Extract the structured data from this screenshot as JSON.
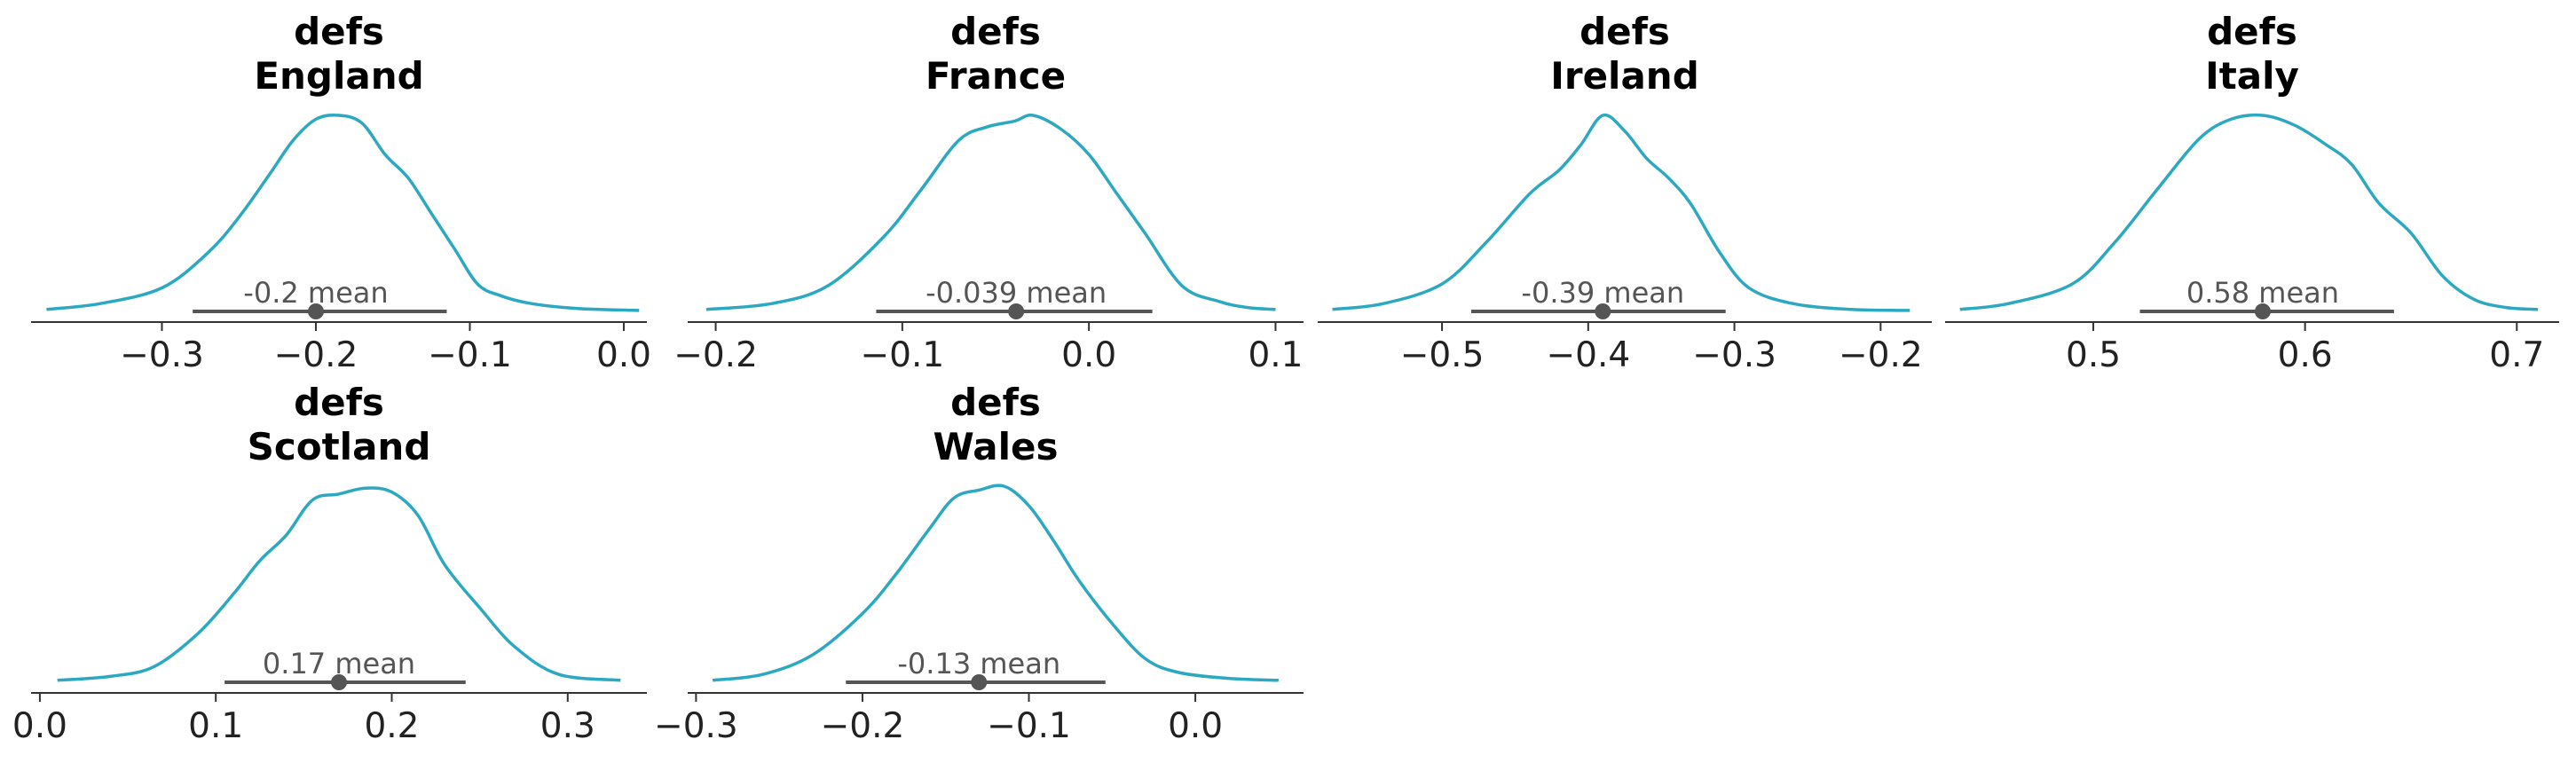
{
  "colors": {
    "density": "#2ca9c1",
    "hdi": "#555555",
    "axis": "#333333",
    "title": "#000000"
  },
  "chart_data": [
    {
      "type": "density",
      "title": [
        "defs",
        "England"
      ],
      "xlim": [
        -0.385,
        0.015
      ],
      "ticks": [
        -0.3,
        -0.2,
        -0.1,
        0.0
      ],
      "tick_labels": [
        "−0.3",
        "−0.2",
        "−0.1",
        "0.0"
      ],
      "mean": -0.2,
      "mean_label": "-0.2 mean",
      "hdi": [
        -0.28,
        -0.115
      ],
      "density": {
        "x": [
          -0.375,
          -0.34,
          -0.3,
          -0.27,
          -0.25,
          -0.23,
          -0.215,
          -0.2,
          -0.185,
          -0.17,
          -0.155,
          -0.14,
          -0.125,
          -0.11,
          -0.095,
          -0.08,
          -0.06,
          -0.03,
          0.01
        ],
        "y": [
          0.01,
          0.04,
          0.12,
          0.3,
          0.48,
          0.7,
          0.87,
          0.98,
          1.0,
          0.96,
          0.8,
          0.68,
          0.5,
          0.32,
          0.14,
          0.08,
          0.04,
          0.015,
          0.005
        ]
      }
    },
    {
      "type": "density",
      "title": [
        "defs",
        "France"
      ],
      "xlim": [
        -0.215,
        0.115
      ],
      "ticks": [
        -0.2,
        -0.1,
        0.0,
        0.1
      ],
      "tick_labels": [
        "−0.2",
        "−0.1",
        "0.0",
        "0.1"
      ],
      "mean": -0.039,
      "mean_label": "-0.039 mean",
      "hdi": [
        -0.114,
        0.034
      ],
      "density": {
        "x": [
          -0.205,
          -0.17,
          -0.14,
          -0.11,
          -0.09,
          -0.07,
          -0.055,
          -0.04,
          -0.03,
          -0.015,
          0.0,
          0.015,
          0.03,
          0.05,
          0.07,
          0.085,
          0.1
        ],
        "y": [
          0.01,
          0.04,
          0.13,
          0.38,
          0.62,
          0.87,
          0.94,
          0.97,
          1.0,
          0.93,
          0.8,
          0.6,
          0.4,
          0.13,
          0.05,
          0.02,
          0.01
        ]
      }
    },
    {
      "type": "density",
      "title": [
        "defs",
        "Ireland"
      ],
      "xlim": [
        -0.585,
        -0.165
      ],
      "ticks": [
        -0.5,
        -0.4,
        -0.3,
        -0.2
      ],
      "tick_labels": [
        "−0.5",
        "−0.4",
        "−0.3",
        "−0.2"
      ],
      "mean": -0.39,
      "mean_label": "-0.39 mean",
      "hdi": [
        -0.48,
        -0.306
      ],
      "density": {
        "x": [
          -0.575,
          -0.54,
          -0.5,
          -0.47,
          -0.44,
          -0.42,
          -0.405,
          -0.39,
          -0.375,
          -0.36,
          -0.345,
          -0.33,
          -0.31,
          -0.29,
          -0.26,
          -0.22,
          -0.18
        ],
        "y": [
          0.01,
          0.04,
          0.14,
          0.35,
          0.6,
          0.72,
          0.85,
          1.0,
          0.92,
          0.78,
          0.68,
          0.55,
          0.3,
          0.12,
          0.04,
          0.01,
          0.005
        ]
      }
    },
    {
      "type": "density",
      "title": [
        "defs",
        "Italy"
      ],
      "xlim": [
        0.43,
        0.72
      ],
      "ticks": [
        0.5,
        0.6,
        0.7
      ],
      "tick_labels": [
        "0.5",
        "0.6",
        "0.7"
      ],
      "mean": 0.58,
      "mean_label": "0.58 mean",
      "hdi": [
        0.522,
        0.642
      ],
      "density": {
        "x": [
          0.437,
          0.46,
          0.49,
          0.51,
          0.53,
          0.55,
          0.565,
          0.58,
          0.595,
          0.61,
          0.622,
          0.635,
          0.65,
          0.665,
          0.68,
          0.695,
          0.71
        ],
        "y": [
          0.01,
          0.04,
          0.14,
          0.35,
          0.62,
          0.88,
          0.98,
          1.0,
          0.95,
          0.85,
          0.75,
          0.55,
          0.4,
          0.18,
          0.06,
          0.02,
          0.01
        ]
      }
    },
    {
      "type": "density",
      "title": [
        "defs",
        "Scotland"
      ],
      "xlim": [
        -0.005,
        0.345
      ],
      "ticks": [
        0.0,
        0.1,
        0.2,
        0.3
      ],
      "tick_labels": [
        "0.0",
        "0.1",
        "0.2",
        "0.3"
      ],
      "mean": 0.17,
      "mean_label": "0.17 mean",
      "hdi": [
        0.105,
        0.242
      ],
      "density": {
        "x": [
          0.01,
          0.04,
          0.065,
          0.09,
          0.11,
          0.125,
          0.14,
          0.155,
          0.17,
          0.185,
          0.2,
          0.215,
          0.23,
          0.25,
          0.27,
          0.295,
          0.33
        ],
        "y": [
          0.01,
          0.03,
          0.08,
          0.25,
          0.45,
          0.62,
          0.75,
          0.93,
          0.96,
          0.99,
          0.97,
          0.85,
          0.6,
          0.38,
          0.18,
          0.04,
          0.01
        ]
      }
    },
    {
      "type": "density",
      "title": [
        "defs",
        "Wales"
      ],
      "xlim": [
        -0.305,
        0.065
      ],
      "ticks": [
        -0.3,
        -0.2,
        -0.1,
        0.0
      ],
      "tick_labels": [
        "−0.3",
        "−0.2",
        "−0.1",
        "0.0"
      ],
      "mean": -0.13,
      "mean_label": "-0.13 mean",
      "hdi": [
        -0.21,
        -0.054
      ],
      "density": {
        "x": [
          -0.29,
          -0.26,
          -0.23,
          -0.2,
          -0.18,
          -0.16,
          -0.145,
          -0.13,
          -0.115,
          -0.1,
          -0.085,
          -0.07,
          -0.05,
          -0.03,
          -0.01,
          0.02,
          0.05
        ],
        "y": [
          0.01,
          0.04,
          0.14,
          0.35,
          0.55,
          0.78,
          0.94,
          0.98,
          1.0,
          0.9,
          0.72,
          0.52,
          0.3,
          0.12,
          0.05,
          0.02,
          0.01
        ]
      }
    }
  ]
}
